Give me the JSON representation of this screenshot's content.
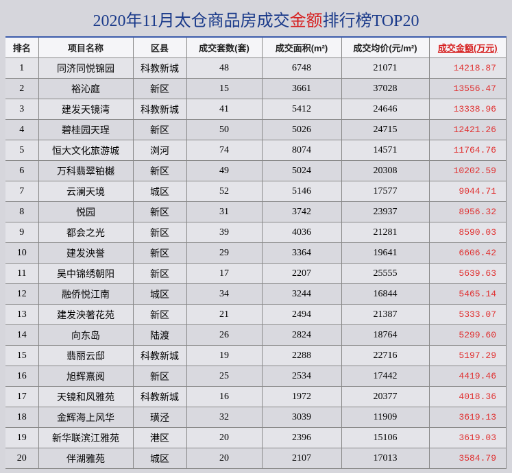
{
  "title": {
    "pre": "2020年11月太仓商品房成交",
    "accent": "金额",
    "post": "排行榜TOP20"
  },
  "headers": {
    "rank": "排名",
    "name": "项目名称",
    "district": "区县",
    "sets": "成交套数(套)",
    "area": "成交面积(m²)",
    "price": "成交均价(元/m²)",
    "amount": "成交金额(万元)"
  },
  "rows": [
    {
      "rank": "1",
      "name": "同济同悦锦园",
      "district": "科教新城",
      "sets": "48",
      "area": "6748",
      "price": "21071",
      "amount": "14218.87"
    },
    {
      "rank": "2",
      "name": "裕沁庭",
      "district": "新区",
      "sets": "15",
      "area": "3661",
      "price": "37028",
      "amount": "13556.47"
    },
    {
      "rank": "3",
      "name": "建发天镜湾",
      "district": "科教新城",
      "sets": "41",
      "area": "5412",
      "price": "24646",
      "amount": "13338.96"
    },
    {
      "rank": "4",
      "name": "碧桂园天珵",
      "district": "新区",
      "sets": "50",
      "area": "5026",
      "price": "24715",
      "amount": "12421.26"
    },
    {
      "rank": "5",
      "name": "恒大文化旅游城",
      "district": "浏河",
      "sets": "74",
      "area": "8074",
      "price": "14571",
      "amount": "11764.76"
    },
    {
      "rank": "6",
      "name": "万科翡翠铂樾",
      "district": "新区",
      "sets": "49",
      "area": "5024",
      "price": "20308",
      "amount": "10202.59"
    },
    {
      "rank": "7",
      "name": "云澜天境",
      "district": "城区",
      "sets": "52",
      "area": "5146",
      "price": "17577",
      "amount": "9044.71"
    },
    {
      "rank": "8",
      "name": "悦园",
      "district": "新区",
      "sets": "31",
      "area": "3742",
      "price": "23937",
      "amount": "8956.32"
    },
    {
      "rank": "9",
      "name": "都会之光",
      "district": "新区",
      "sets": "39",
      "area": "4036",
      "price": "21281",
      "amount": "8590.03"
    },
    {
      "rank": "10",
      "name": "建发泱誉",
      "district": "新区",
      "sets": "29",
      "area": "3364",
      "price": "19641",
      "amount": "6606.42"
    },
    {
      "rank": "11",
      "name": "吴中锦绣朝阳",
      "district": "新区",
      "sets": "17",
      "area": "2207",
      "price": "25555",
      "amount": "5639.63"
    },
    {
      "rank": "12",
      "name": "融侨悦江南",
      "district": "城区",
      "sets": "34",
      "area": "3244",
      "price": "16844",
      "amount": "5465.14"
    },
    {
      "rank": "13",
      "name": "建发泱著花苑",
      "district": "新区",
      "sets": "21",
      "area": "2494",
      "price": "21387",
      "amount": "5333.07"
    },
    {
      "rank": "14",
      "name": "向东岛",
      "district": "陆渡",
      "sets": "26",
      "area": "2824",
      "price": "18764",
      "amount": "5299.60"
    },
    {
      "rank": "15",
      "name": "翡丽云邸",
      "district": "科教新城",
      "sets": "19",
      "area": "2288",
      "price": "22716",
      "amount": "5197.29"
    },
    {
      "rank": "16",
      "name": "旭辉熹阅",
      "district": "新区",
      "sets": "25",
      "area": "2534",
      "price": "17442",
      "amount": "4419.46"
    },
    {
      "rank": "17",
      "name": "天镜和风雅苑",
      "district": "科教新城",
      "sets": "16",
      "area": "1972",
      "price": "20377",
      "amount": "4018.36"
    },
    {
      "rank": "18",
      "name": "金辉海上风华",
      "district": "璜泾",
      "sets": "32",
      "area": "3039",
      "price": "11909",
      "amount": "3619.13"
    },
    {
      "rank": "19",
      "name": "新华联滨江雅苑",
      "district": "港区",
      "sets": "20",
      "area": "2396",
      "price": "15106",
      "amount": "3619.03"
    },
    {
      "rank": "20",
      "name": "伴湖雅苑",
      "district": "城区",
      "sets": "20",
      "area": "2107",
      "price": "17013",
      "amount": "3584.79"
    }
  ],
  "colors": {
    "title_color": "#1a3a8a",
    "accent_color": "#d62020",
    "amount_color": "#e03030",
    "border_color": "#888888",
    "bg_odd": "#ebebf0",
    "bg_even": "#dadae1",
    "page_bg": "#d6d6dc"
  }
}
